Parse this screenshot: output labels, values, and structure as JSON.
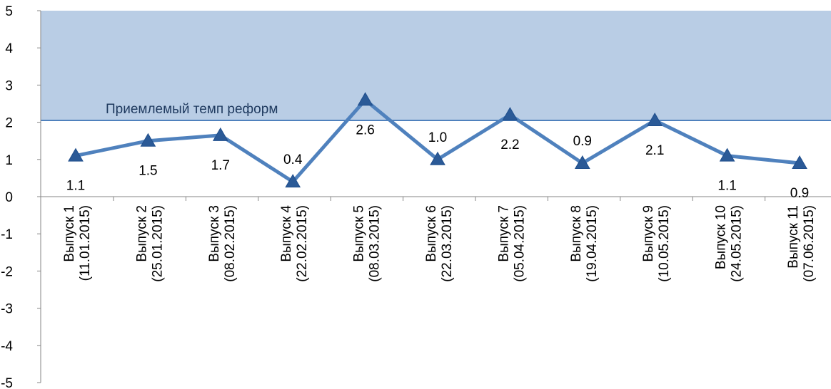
{
  "chart_data": {
    "type": "line",
    "categories": [
      [
        "Выпуск 1",
        "(11.01.2015)"
      ],
      [
        "Выпуск 2",
        "(25.01.2015)"
      ],
      [
        "Выпуск 3",
        "(08.02.2015)"
      ],
      [
        "Выпуск 4",
        "(22.02.2015)"
      ],
      [
        "Выпуск 5",
        "(08.03.2015)"
      ],
      [
        "Выпуск 6",
        "(22.03.2015)"
      ],
      [
        "Выпуск 7",
        "(05.04.2015)"
      ],
      [
        "Выпуск 8",
        "(19.04.2015)"
      ],
      [
        "Выпуск 9",
        "(10.05.2015)"
      ],
      [
        "Выпуск 10",
        "(24.05.2015)"
      ],
      [
        "Выпуск 11",
        "(07.06.2015)"
      ]
    ],
    "values": [
      1.1,
      1.5,
      1.65,
      0.4,
      2.6,
      1.0,
      2.2,
      0.9,
      2.05,
      1.1,
      0.9
    ],
    "data_labels": [
      "1.1",
      "1.5",
      "1.7",
      "0.4",
      "2.6",
      "1.0",
      "2.2",
      "0.9",
      "2.1",
      "1.1",
      "0.9"
    ],
    "label_positions": [
      "below",
      "below",
      "below",
      "above",
      "below",
      "above",
      "below",
      "above",
      "below",
      "below",
      "below"
    ],
    "ylim": [
      -5,
      5
    ],
    "yticks": [
      "-5",
      "-4",
      "-3",
      "-2",
      "-1",
      "0",
      "1",
      "2",
      "3",
      "4",
      "5"
    ],
    "threshold": {
      "label": "Приемлемый темп реформ",
      "value": 2.05,
      "upper": 5
    },
    "colors": {
      "line": "#4f81bd",
      "marker": "#2b5a97",
      "band": "#b9cde5",
      "threshold_line": "#4f81bd",
      "axis": "#868686"
    },
    "marker": "triangle",
    "grid": false,
    "legend": "none",
    "title": "",
    "xlabel": "",
    "ylabel": ""
  }
}
